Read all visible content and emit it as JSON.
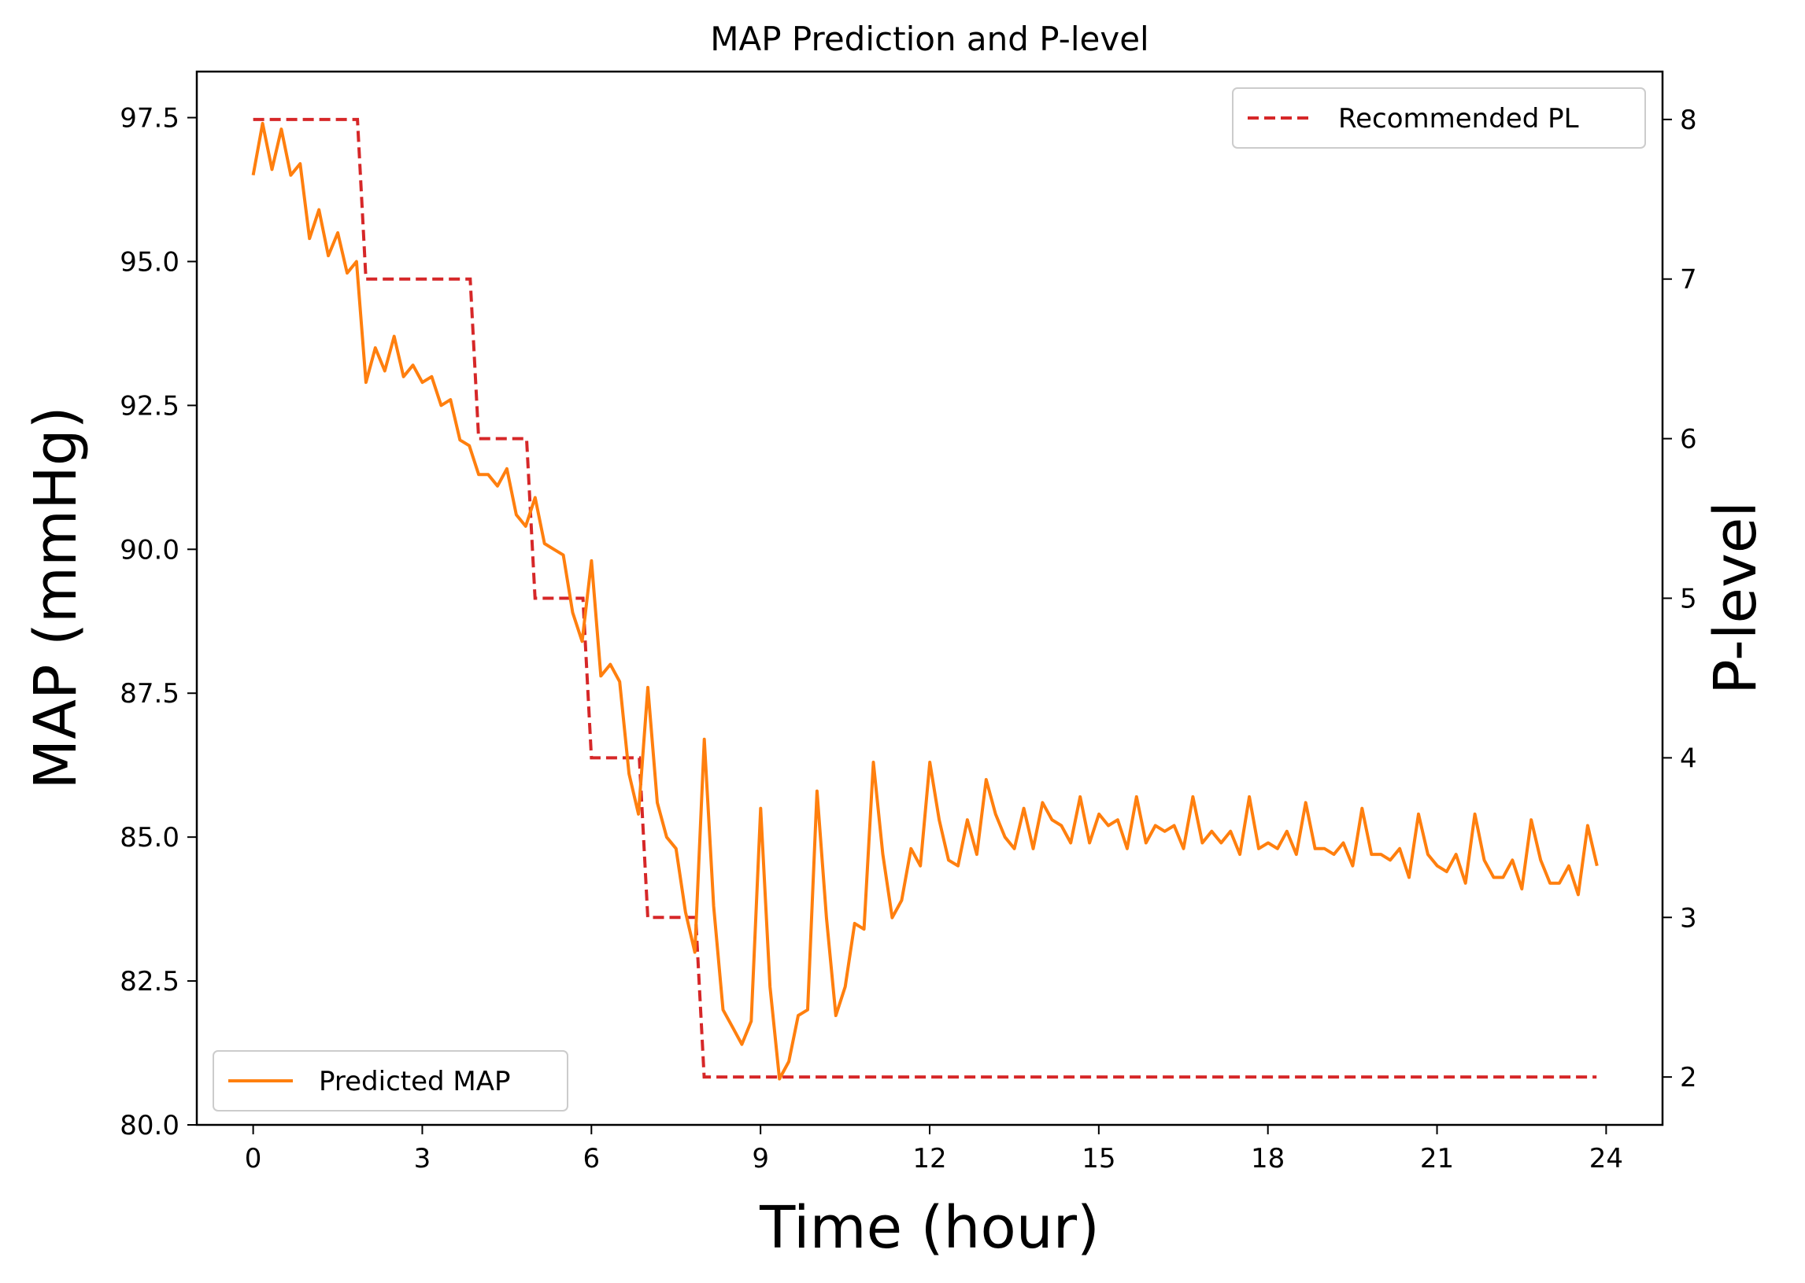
{
  "chart_data": {
    "type": "line",
    "title": "MAP Prediction and P-level",
    "xlabel": "Time (hour)",
    "ylabel": "MAP (mmHg)",
    "y2label": "P-level",
    "xlim": [
      -1,
      25
    ],
    "ylim": [
      80.0,
      98.3
    ],
    "y2lim": [
      1.7,
      8.3
    ],
    "x_ticks": [
      0,
      3,
      6,
      9,
      12,
      15,
      18,
      21,
      24
    ],
    "x_tick_labels": [
      "0",
      "3",
      "6",
      "9",
      "12",
      "15",
      "18",
      "21",
      "24"
    ],
    "y_ticks": [
      80.0,
      82.5,
      85.0,
      87.5,
      90.0,
      92.5,
      95.0,
      97.5
    ],
    "y_tick_labels": [
      "80.0",
      "82.5",
      "85.0",
      "87.5",
      "90.0",
      "92.5",
      "95.0",
      "97.5"
    ],
    "y2_ticks": [
      2,
      3,
      4,
      5,
      6,
      7,
      8
    ],
    "y2_tick_labels": [
      "2",
      "3",
      "4",
      "5",
      "6",
      "7",
      "8"
    ],
    "grid": false,
    "series": [
      {
        "name": "Predicted MAP",
        "axis": "left",
        "color": "#ff7f0e",
        "style": "solid",
        "legend_position": "lower-left",
        "x_start": 0,
        "x_step": 0.1667,
        "values": [
          96.5,
          97.4,
          96.6,
          97.3,
          96.5,
          96.7,
          95.4,
          95.9,
          95.1,
          95.5,
          94.8,
          95.0,
          92.9,
          93.5,
          93.1,
          93.7,
          93.0,
          93.2,
          92.9,
          93.0,
          92.5,
          92.6,
          91.9,
          91.8,
          91.3,
          91.3,
          91.1,
          91.4,
          90.6,
          90.4,
          90.9,
          90.1,
          90.0,
          89.9,
          88.9,
          88.4,
          89.8,
          87.8,
          88.0,
          87.7,
          86.1,
          85.4,
          87.6,
          85.6,
          85.0,
          84.8,
          83.7,
          83.0,
          86.7,
          83.8,
          82.0,
          81.7,
          81.4,
          81.8,
          85.5,
          82.4,
          80.8,
          81.1,
          81.9,
          82.0,
          85.8,
          83.6,
          81.9,
          82.4,
          83.5,
          83.4,
          86.3,
          84.7,
          83.6,
          83.9,
          84.8,
          84.5,
          86.3,
          85.3,
          84.6,
          84.5,
          85.3,
          84.7,
          86.0,
          85.4,
          85.0,
          84.8,
          85.5,
          84.8,
          85.6,
          85.3,
          85.2,
          84.9,
          85.7,
          84.9,
          85.4,
          85.2,
          85.3,
          84.8,
          85.7,
          84.9,
          85.2,
          85.1,
          85.2,
          84.8,
          85.7,
          84.9,
          85.1,
          84.9,
          85.1,
          84.7,
          85.7,
          84.8,
          84.9,
          84.8,
          85.1,
          84.7,
          85.6,
          84.8,
          84.8,
          84.7,
          84.9,
          84.5,
          85.5,
          84.7,
          84.7,
          84.6,
          84.8,
          84.3,
          85.4,
          84.7,
          84.5,
          84.4,
          84.7,
          84.2,
          85.4,
          84.6,
          84.3,
          84.3,
          84.6,
          84.1,
          85.3,
          84.6,
          84.2,
          84.2,
          84.5,
          84.0,
          85.2,
          84.5
        ]
      },
      {
        "name": "Recommended PL",
        "axis": "right",
        "color": "#d62728",
        "style": "dashed",
        "legend_position": "upper-right",
        "steps": [
          {
            "x0": 0,
            "x1": 1.85,
            "value": 8
          },
          {
            "x0": 2.0,
            "x1": 3.85,
            "value": 7
          },
          {
            "x0": 4.0,
            "x1": 4.85,
            "value": 6
          },
          {
            "x0": 5.0,
            "x1": 5.85,
            "value": 5
          },
          {
            "x0": 6.0,
            "x1": 6.85,
            "value": 4
          },
          {
            "x0": 7.0,
            "x1": 7.85,
            "value": 3
          },
          {
            "x0": 8.0,
            "x1": 23.83,
            "value": 2
          }
        ]
      }
    ]
  }
}
